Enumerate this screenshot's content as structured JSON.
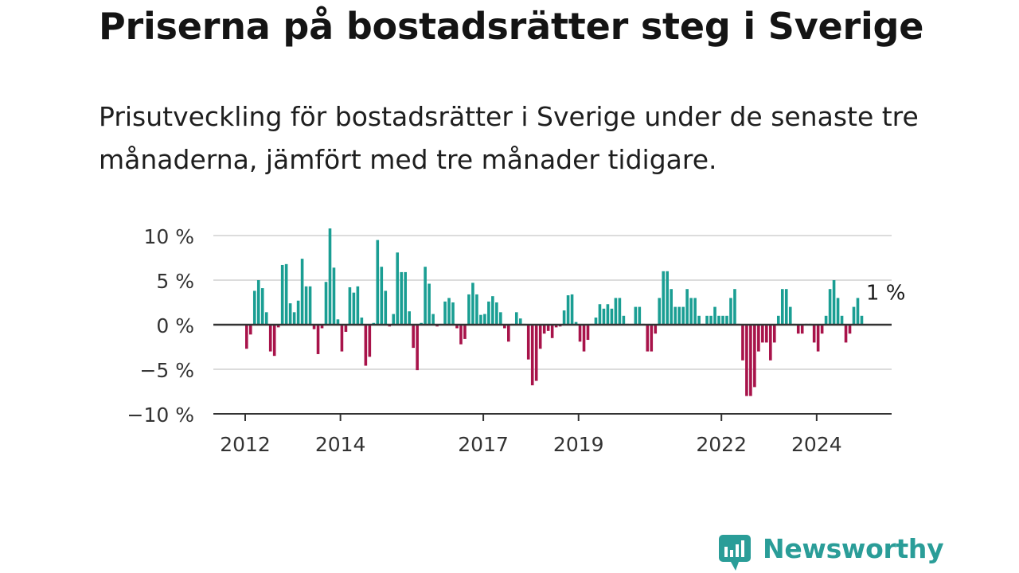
{
  "title": "Priserna på bostadsrätter steg i Sverige",
  "subtitle": "Prisutveckling för bostadsrätter i Sverige under de senaste tre månaderna, jämfört med tre månader tidigare.",
  "brand": {
    "name": "Newsworthy"
  },
  "colors": {
    "positive": "#1a9e93",
    "negative": "#a8134a",
    "grid": "#dcdcdc",
    "axis": "#333333"
  },
  "chart_data": {
    "type": "bar",
    "title": "",
    "xlabel": "",
    "ylabel": "",
    "ylim": [
      -10,
      10
    ],
    "yticks": [
      10,
      5,
      0,
      -5,
      -10
    ],
    "ytick_labels": [
      "10 %",
      "5 %",
      "0 %",
      "−5 %",
      "−10 %"
    ],
    "xticks": [
      "2012",
      "2014",
      "2017",
      "2019",
      "2022",
      "2024"
    ],
    "grid": true,
    "annotation": {
      "text": "1 %",
      "target": "last"
    },
    "start": "2012-01",
    "end": "2025-03",
    "values": [
      -2.7,
      -1.1,
      3.8,
      5.0,
      4.1,
      1.4,
      -3.0,
      -3.5,
      -0.3,
      6.7,
      6.8,
      2.4,
      1.4,
      2.7,
      7.4,
      4.3,
      4.3,
      -0.5,
      -3.3,
      -0.4,
      4.8,
      10.8,
      6.4,
      0.6,
      -3.0,
      -0.8,
      4.2,
      3.6,
      4.3,
      0.8,
      -4.6,
      -3.6,
      0.2,
      9.5,
      6.5,
      3.8,
      -0.2,
      1.2,
      8.1,
      5.9,
      5.9,
      1.5,
      -2.6,
      -5.1,
      0.2,
      6.5,
      4.6,
      1.2,
      -0.2,
      0.1,
      2.6,
      3.0,
      2.5,
      -0.4,
      -2.2,
      -1.6,
      3.4,
      4.7,
      3.4,
      1.1,
      1.2,
      2.6,
      3.2,
      2.5,
      1.4,
      -0.4,
      -1.9,
      0.1,
      1.4,
      0.7,
      0.1,
      -3.9,
      -6.8,
      -6.3,
      -2.7,
      -1.0,
      -0.7,
      -1.5,
      -0.3,
      -0.2,
      1.6,
      3.3,
      3.4,
      0.3,
      -1.9,
      -3.0,
      -1.7,
      0.1,
      0.8,
      2.3,
      1.8,
      2.3,
      1.8,
      3.0,
      3.0,
      1.0,
      0.1,
      0.1,
      2.0,
      2.0,
      0.1,
      -3.0,
      -3.0,
      -1.0,
      3.0,
      6.0,
      6.0,
      4.0,
      2.0,
      2.0,
      2.0,
      4.0,
      3.0,
      3.0,
      1.0,
      0.1,
      1.0,
      1.0,
      2.0,
      1.0,
      1.0,
      1.0,
      3.0,
      4.0,
      0.1,
      -4.0,
      -8.0,
      -8.0,
      -7.0,
      -3.0,
      -2.0,
      -2.0,
      -4.0,
      -2.0,
      1.0,
      4.0,
      4.0,
      2.0,
      0.1,
      -1.0,
      -1.0,
      0.1,
      0.1,
      -2.0,
      -3.0,
      -1.0,
      1.0,
      4.0,
      5.0,
      3.0,
      1.0,
      -2.0,
      -1.0,
      2.0,
      3.0,
      1.0
    ]
  }
}
